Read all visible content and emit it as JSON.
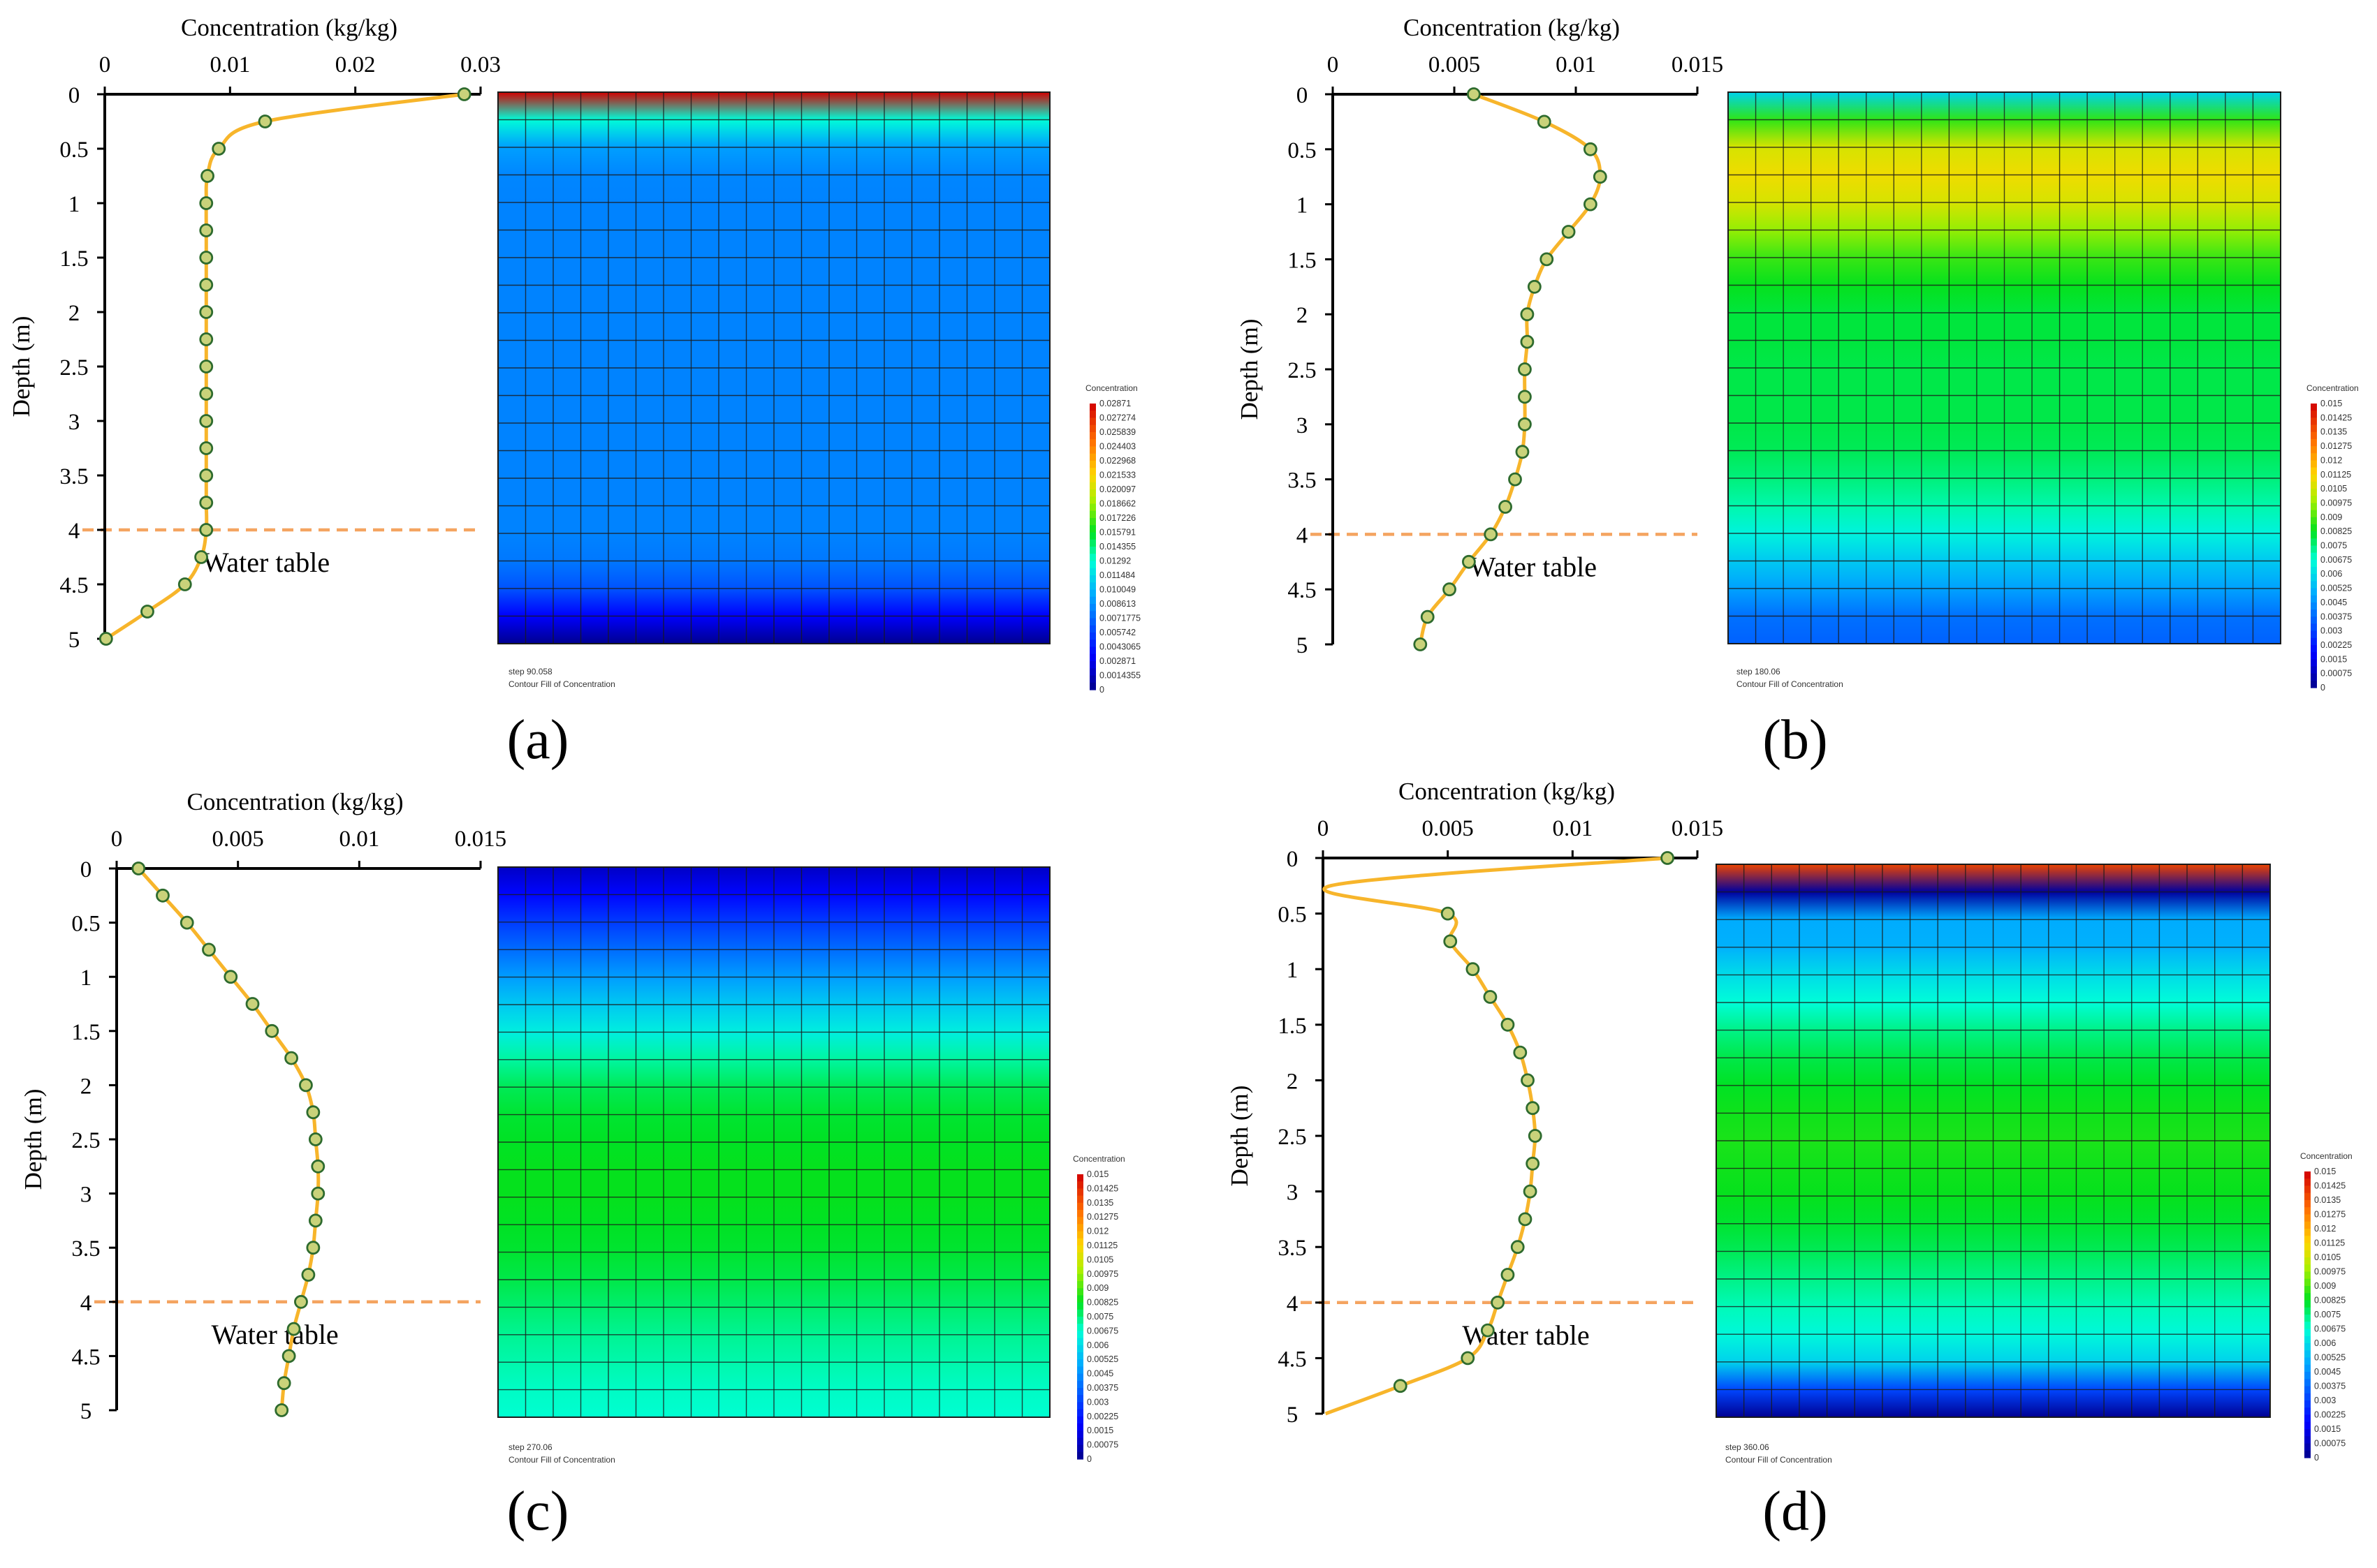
{
  "chart_data": [
    {
      "type": "line",
      "panel_label": "(a)",
      "title": "",
      "xlabel": "Concentration (kg/kg)",
      "ylabel": "Depth (m)",
      "xlim": [
        0,
        0.03
      ],
      "ylim": [
        0,
        5
      ],
      "x_ticks": [
        "0",
        "0.01",
        "0.02",
        "0.03"
      ],
      "y_ticks": [
        "0",
        "0.5",
        "1",
        "1.5",
        "2",
        "2.5",
        "3",
        "3.5",
        "4",
        "4.5",
        "5"
      ],
      "depth": [
        0,
        0.25,
        0.5,
        0.75,
        1,
        1.25,
        1.5,
        1.75,
        2,
        2.25,
        2.5,
        2.75,
        3,
        3.25,
        3.5,
        3.75,
        4,
        4.25,
        4.5,
        4.75,
        5
      ],
      "concentration": [
        0.0287,
        0.0128,
        0.0091,
        0.0082,
        0.0081,
        0.0081,
        0.0081,
        0.0081,
        0.0081,
        0.0081,
        0.0081,
        0.0081,
        0.0081,
        0.0081,
        0.0081,
        0.0081,
        0.0081,
        0.0077,
        0.0064,
        0.0034,
        0.0001
      ],
      "water_table_depth": 4,
      "water_table_label": "Water table",
      "contour": {
        "step_label": "step 90.058",
        "subtitle": "Contour Fill of Concentration",
        "colorbar_title": "Concentration",
        "colorbar_labels": [
          "0.02871",
          "0.027274",
          "0.025839",
          "0.024403",
          "0.022968",
          "0.021533",
          "0.020097",
          "0.018662",
          "0.017226",
          "0.015791",
          "0.014355",
          "0.01292",
          "0.011484",
          "0.010049",
          "0.008613",
          "0.0071775",
          "0.005742",
          "0.0043065",
          "0.002871",
          "0.0014355",
          "0"
        ],
        "vmax": 0.02871
      }
    },
    {
      "type": "line",
      "panel_label": "(b)",
      "title": "",
      "xlabel": "Concentration (kg/kg)",
      "ylabel": "Depth (m)",
      "xlim": [
        0,
        0.015
      ],
      "ylim": [
        0,
        5
      ],
      "x_ticks": [
        "0",
        "0.005",
        "0.01",
        "0.015"
      ],
      "y_ticks": [
        "0",
        "0.5",
        "1",
        "1.5",
        "2",
        "2.5",
        "3",
        "3.5",
        "4",
        "4.5",
        "5"
      ],
      "depth": [
        0,
        0.25,
        0.5,
        0.75,
        1,
        1.25,
        1.5,
        1.75,
        2,
        2.25,
        2.5,
        2.75,
        3,
        3.25,
        3.5,
        3.75,
        4,
        4.25,
        4.5,
        4.75,
        5
      ],
      "concentration": [
        0.0058,
        0.0087,
        0.0106,
        0.011,
        0.0106,
        0.0097,
        0.0088,
        0.0083,
        0.008,
        0.008,
        0.0079,
        0.0079,
        0.0079,
        0.0078,
        0.0075,
        0.0071,
        0.0065,
        0.0056,
        0.0048,
        0.0039,
        0.0036
      ],
      "water_table_depth": 4,
      "water_table_label": "Water table",
      "contour": {
        "step_label": "step 180.06",
        "subtitle": "Contour Fill of Concentration",
        "colorbar_title": "Concentration",
        "colorbar_labels": [
          "0.015",
          "0.01425",
          "0.0135",
          "0.01275",
          "0.012",
          "0.01125",
          "0.0105",
          "0.00975",
          "0.009",
          "0.00825",
          "0.0075",
          "0.00675",
          "0.006",
          "0.00525",
          "0.0045",
          "0.00375",
          "0.003",
          "0.00225",
          "0.0015",
          "0.00075",
          "0"
        ],
        "vmax": 0.015
      }
    },
    {
      "type": "line",
      "panel_label": "(c)",
      "title": "",
      "xlabel": "Concentration (kg/kg)",
      "ylabel": "Depth (m)",
      "xlim": [
        0,
        0.015
      ],
      "ylim": [
        0,
        5
      ],
      "x_ticks": [
        "0",
        "0.005",
        "0.01",
        "0.015"
      ],
      "y_ticks": [
        "0",
        "0.5",
        "1",
        "1.5",
        "2",
        "2.5",
        "3",
        "3.5",
        "4",
        "4.5",
        "5"
      ],
      "depth": [
        0,
        0.25,
        0.5,
        0.75,
        1,
        1.25,
        1.5,
        1.75,
        2,
        2.25,
        2.5,
        2.75,
        3,
        3.25,
        3.5,
        3.75,
        4,
        4.25,
        4.5,
        4.75,
        5
      ],
      "concentration": [
        0.0009,
        0.0019,
        0.0029,
        0.0038,
        0.0047,
        0.0056,
        0.0064,
        0.0072,
        0.0078,
        0.0081,
        0.0082,
        0.0083,
        0.0083,
        0.0082,
        0.0081,
        0.0079,
        0.0076,
        0.0073,
        0.0071,
        0.0069,
        0.0068
      ],
      "water_table_depth": 4,
      "water_table_label": "Water table",
      "contour": {
        "step_label": "step 270.06",
        "subtitle": "Contour Fill of Concentration",
        "colorbar_title": "Concentration",
        "colorbar_labels": [
          "0.015",
          "0.01425",
          "0.0135",
          "0.01275",
          "0.012",
          "0.01125",
          "0.0105",
          "0.00975",
          "0.009",
          "0.00825",
          "0.0075",
          "0.00675",
          "0.006",
          "0.00525",
          "0.0045",
          "0.00375",
          "0.003",
          "0.00225",
          "0.0015",
          "0.00075",
          "0"
        ],
        "vmax": 0.015
      }
    },
    {
      "type": "line",
      "panel_label": "(d)",
      "title": "",
      "xlabel": "Concentration (kg/kg)",
      "ylabel": "Depth (m)",
      "xlim": [
        0,
        0.015
      ],
      "ylim": [
        0,
        5
      ],
      "x_ticks": [
        "0",
        "0.005",
        "0.01",
        "0.015"
      ],
      "y_ticks": [
        "0",
        "0.5",
        "1",
        "1.5",
        "2",
        "2.5",
        "3",
        "3.5",
        "4",
        "4.5",
        "5"
      ],
      "depth": [
        0,
        0.25,
        0.5,
        0.75,
        1,
        1.25,
        1.5,
        1.75,
        2,
        2.25,
        2.5,
        2.75,
        3,
        3.25,
        3.5,
        3.75,
        4,
        4.25,
        4.5,
        4.75,
        5
      ],
      "concentration": [
        0.0138,
        0.0003,
        0.005,
        0.0051,
        0.006,
        0.0067,
        0.0074,
        0.0079,
        0.0082,
        0.0084,
        0.0085,
        0.0084,
        0.0083,
        0.0081,
        0.0078,
        0.0074,
        0.007,
        0.0066,
        0.0058,
        0.0031,
        0.0001
      ],
      "marker_depths": [
        0,
        0.5,
        0.75,
        1,
        1.25,
        1.5,
        1.75,
        2,
        2.25,
        2.5,
        2.75,
        3,
        3.25,
        3.5,
        3.75,
        4,
        4.25,
        4.5,
        4.75
      ],
      "water_table_depth": 4,
      "water_table_label": "Water table",
      "contour": {
        "step_label": "step 360.06",
        "subtitle": "Contour Fill of Concentration",
        "colorbar_title": "Concentration",
        "colorbar_labels": [
          "0.015",
          "0.01425",
          "0.0135",
          "0.01275",
          "0.012",
          "0.01125",
          "0.0105",
          "0.00975",
          "0.009",
          "0.00825",
          "0.0075",
          "0.00675",
          "0.006",
          "0.00525",
          "0.0045",
          "0.00375",
          "0.003",
          "0.00225",
          "0.0015",
          "0.00075",
          "0"
        ],
        "vmax": 0.015
      }
    }
  ],
  "colors": {
    "line": "#f7b52b",
    "marker_edge": "#2e6b2e",
    "marker_fill": "#c9d27a",
    "water_table": "#f4a460",
    "axis": "#000000",
    "grid": "#1a1a1a"
  }
}
